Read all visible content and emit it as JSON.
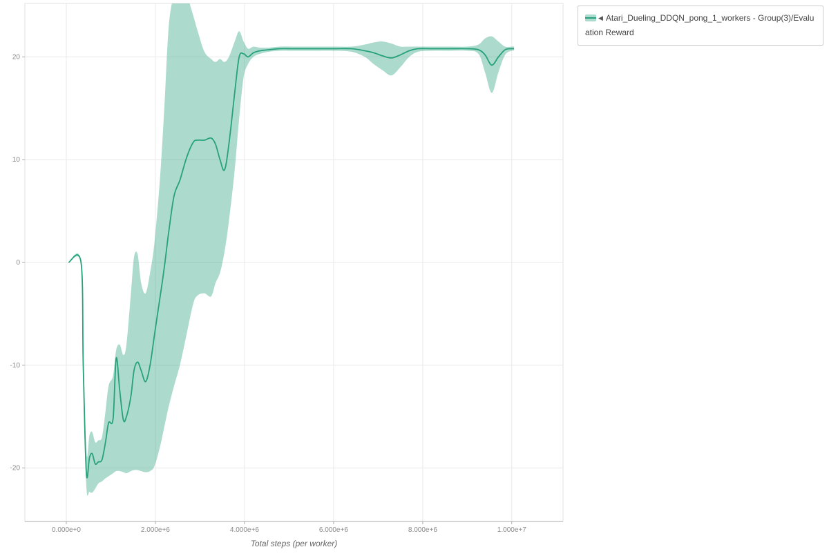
{
  "legend": {
    "collapse_icon": "◀",
    "label": "Atari_Dueling_DDQN_pong_1_workers - Group(3)/Evaluation Reward"
  },
  "colors": {
    "line": "#26a17b",
    "band": "rgba(38,161,123,0.38)",
    "grid": "#e8e8e8",
    "plot_border": "#e0e0e0",
    "axis": "#aaaaaa",
    "tick_label": "#888888",
    "legend_border": "#cccccc",
    "legend_text": "#444444"
  },
  "chart_data": {
    "type": "line",
    "title": "",
    "xlabel": "Total steps (per worker)",
    "ylabel": "",
    "xlim": [
      -930000,
      11150000
    ],
    "ylim": [
      -25.2,
      25.2
    ],
    "grid": true,
    "legend_position": "top-right",
    "x_ticks": {
      "values": [
        0,
        2000000,
        4000000,
        6000000,
        8000000,
        10000000
      ],
      "labels": [
        "0.000e+0",
        "2.000e+6",
        "4.000e+6",
        "6.000e+6",
        "8.000e+6",
        "1.000e+7"
      ]
    },
    "y_ticks": {
      "values": [
        -20,
        -10,
        0,
        10,
        20
      ],
      "labels": [
        "-20",
        "-10",
        "0",
        "10",
        "20"
      ]
    },
    "series": [
      {
        "name": "Atari_Dueling_DDQN_pong_1_workers - Group(3)/Evaluation Reward",
        "x": [
          50000,
          330000,
          380000,
          450000,
          520000,
          580000,
          650000,
          720000,
          800000,
          880000,
          950000,
          1050000,
          1120000,
          1200000,
          1280000,
          1350000,
          1450000,
          1520000,
          1600000,
          1680000,
          1780000,
          1880000,
          1980000,
          2100000,
          2200000,
          2300000,
          2420000,
          2550000,
          2700000,
          2850000,
          2950000,
          3100000,
          3250000,
          3350000,
          3450000,
          3550000,
          3650000,
          3780000,
          3880000,
          3980000,
          4080000,
          4200000,
          4350000,
          4550000,
          4800000,
          5100000,
          5500000,
          6000000,
          6400000,
          6700000,
          6900000,
          7100000,
          7300000,
          7500000,
          7700000,
          7900000,
          8200000,
          8600000,
          9000000,
          9250000,
          9400000,
          9550000,
          9700000,
          9850000,
          10000000,
          10050000
        ],
        "mean": [
          0,
          0,
          -10,
          -20.5,
          -19,
          -18.6,
          -19.6,
          -19.4,
          -19.2,
          -17.5,
          -15.6,
          -15.2,
          -9.3,
          -12.5,
          -15.3,
          -15,
          -13,
          -10.5,
          -9.7,
          -10.5,
          -11.6,
          -10,
          -7,
          -3.5,
          -0.5,
          3,
          6.5,
          8,
          10.2,
          11.7,
          11.9,
          11.9,
          12.1,
          11.5,
          10,
          9,
          11.5,
          16.5,
          20,
          20.3,
          20,
          20.4,
          20.6,
          20.7,
          20.8,
          20.8,
          20.8,
          20.8,
          20.8,
          20.6,
          20.4,
          20.1,
          19.9,
          20.2,
          20.6,
          20.8,
          20.8,
          20.8,
          20.8,
          20.7,
          20.2,
          19.2,
          20,
          20.7,
          20.8,
          20.8
        ],
        "upper": [
          0,
          0,
          -8,
          -18.5,
          -16.8,
          -16.5,
          -17.5,
          -17.3,
          -17,
          -14.5,
          -12,
          -11,
          -8.5,
          -8,
          -9,
          -8,
          -3,
          0.5,
          0.8,
          -2,
          -3,
          -1,
          2,
          8,
          15,
          23,
          26,
          26.5,
          26,
          24,
          22.5,
          20.5,
          19.8,
          19.5,
          19.8,
          19.5,
          20,
          21.5,
          22.5,
          21.5,
          20.8,
          21,
          20.9,
          20.9,
          21,
          21,
          21,
          21,
          21,
          21.2,
          21.4,
          21.5,
          21.3,
          21,
          21,
          21,
          21,
          21,
          21,
          21.2,
          21.8,
          22,
          21.5,
          21,
          21,
          21
        ],
        "lower": [
          0,
          0,
          -12,
          -21.8,
          -22.3,
          -22.4,
          -22,
          -21.5,
          -21.3,
          -21,
          -20.8,
          -20.5,
          -20.3,
          -20.3,
          -20.4,
          -20.5,
          -20.3,
          -20.2,
          -20.2,
          -20.3,
          -20.4,
          -20.3,
          -19.8,
          -18,
          -16,
          -14,
          -12,
          -10,
          -7,
          -4,
          -3.2,
          -3,
          -3.3,
          -2,
          -1,
          1,
          4,
          9,
          14,
          18,
          19.3,
          20,
          20.3,
          20.5,
          20.6,
          20.6,
          20.6,
          20.6,
          20.5,
          20,
          19.3,
          18.7,
          18.2,
          19,
          20,
          20.5,
          20.6,
          20.6,
          20.6,
          20.3,
          18.5,
          16.5,
          18.5,
          20.2,
          20.6,
          20.6
        ]
      }
    ]
  }
}
